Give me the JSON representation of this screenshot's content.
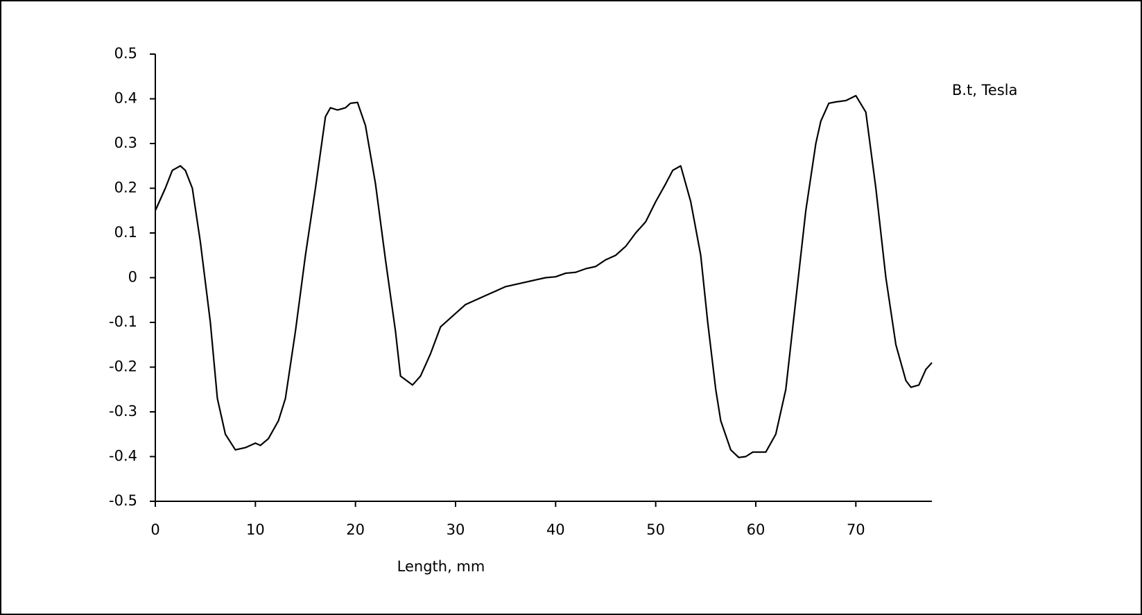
{
  "chart_data": {
    "type": "line",
    "x_label": "Length, mm",
    "x": [
      0,
      1,
      1.7,
      2.5,
      3,
      3.7,
      4.5,
      5.5,
      6.2,
      7,
      8,
      9,
      10,
      10.5,
      11.3,
      12.3,
      13,
      14,
      15,
      16,
      17,
      17.5,
      18.2,
      19,
      19.5,
      20.2,
      21,
      22,
      23,
      24,
      24.5,
      25.7,
      26.5,
      27.5,
      28.5,
      30,
      31,
      32,
      33,
      34,
      35,
      36,
      37,
      38,
      39,
      40,
      41,
      42,
      43,
      44,
      45,
      46,
      47,
      48,
      49,
      50,
      51,
      51.7,
      52.5,
      53.5,
      54.5,
      55.2,
      56,
      56.5,
      57.5,
      58.3,
      59,
      59.7,
      61,
      62,
      63,
      64,
      65,
      66,
      66.5,
      67.3,
      68,
      69,
      70,
      71,
      72,
      73,
      74,
      75,
      75.5,
      76.3,
      77,
      77.6
    ],
    "series": [
      {
        "name": "B.t, Tesla",
        "color": "#000000",
        "values": [
          0.15,
          0.2,
          0.24,
          0.25,
          0.24,
          0.2,
          0.08,
          -0.1,
          -0.27,
          -0.35,
          -0.385,
          -0.38,
          -0.37,
          -0.375,
          -0.36,
          -0.32,
          -0.27,
          -0.12,
          0.05,
          0.2,
          0.36,
          0.38,
          0.375,
          0.38,
          0.39,
          0.392,
          0.34,
          0.21,
          0.04,
          -0.12,
          -0.22,
          -0.24,
          -0.22,
          -0.17,
          -0.11,
          -0.08,
          -0.06,
          -0.05,
          -0.04,
          -0.03,
          -0.02,
          -0.015,
          -0.01,
          -0.005,
          0,
          0.002,
          0.01,
          0.012,
          0.02,
          0.025,
          0.04,
          0.05,
          0.07,
          0.1,
          0.125,
          0.17,
          0.21,
          0.24,
          0.25,
          0.17,
          0.05,
          -0.1,
          -0.25,
          -0.32,
          -0.385,
          -0.402,
          -0.4,
          -0.39,
          -0.39,
          -0.35,
          -0.25,
          -0.05,
          0.15,
          0.3,
          0.35,
          0.39,
          0.393,
          0.396,
          0.407,
          0.37,
          0.2,
          0,
          -0.15,
          -0.23,
          -0.245,
          -0.24,
          -0.205,
          -0.19
        ]
      }
    ],
    "xlim": [
      0,
      77.6
    ],
    "xticks": [
      0,
      10,
      20,
      30,
      40,
      50,
      60,
      70
    ],
    "ylim": [
      -0.5,
      0.5
    ],
    "yticks": [
      -0.5,
      -0.4,
      -0.3,
      -0.2,
      -0.1,
      0,
      0.1,
      0.2,
      0.3,
      0.4,
      0.5
    ],
    "grid": false,
    "legend_position": "right"
  }
}
